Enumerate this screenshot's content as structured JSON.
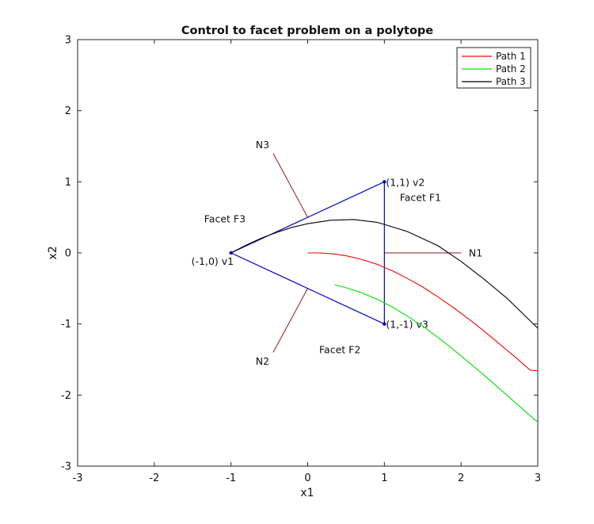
{
  "chart_data": {
    "type": "line",
    "title": "Control to facet problem on a polytope",
    "xlabel": "x1",
    "ylabel": "x2",
    "xlim": [
      -3,
      3
    ],
    "ylim": [
      -3,
      3
    ],
    "xticks": [
      -3,
      -2,
      -1,
      0,
      1,
      2,
      3
    ],
    "yticks": [
      -3,
      -2,
      -1,
      0,
      1,
      2,
      3
    ],
    "grid": false,
    "legend_position": "top-right",
    "series": [
      {
        "name": "Path 1",
        "color": "#ff0000",
        "x": [
          0,
          0.15,
          0.3,
          0.5,
          0.7,
          0.9,
          1.1,
          1.3,
          1.5,
          1.7,
          1.9,
          2.1,
          2.3,
          2.5,
          2.7,
          2.9,
          3.0
        ],
        "y": [
          0,
          0,
          -0.01,
          -0.04,
          -0.09,
          -0.16,
          -0.25,
          -0.36,
          -0.48,
          -0.62,
          -0.77,
          -0.93,
          -1.1,
          -1.28,
          -1.46,
          -1.65,
          -1.66
        ]
      },
      {
        "name": "Path 2",
        "color": "#00e000",
        "x": [
          0.35,
          0.5,
          0.7,
          0.9,
          1.1,
          1.3,
          1.5,
          1.7,
          1.9,
          2.1,
          2.3,
          2.5,
          2.7,
          2.9,
          3.0
        ],
        "y": [
          -0.45,
          -0.49,
          -0.56,
          -0.65,
          -0.76,
          -0.89,
          -1.03,
          -1.19,
          -1.36,
          -1.54,
          -1.72,
          -1.91,
          -2.1,
          -2.29,
          -2.38
        ]
      },
      {
        "name": "Path 3",
        "color": "#000000",
        "x": [
          -1,
          -0.8,
          -0.6,
          -0.4,
          -0.2,
          0,
          0.3,
          0.6,
          0.9,
          1.0,
          1.3,
          1.7,
          2.0,
          2.3,
          2.6,
          3.0
        ],
        "y": [
          0,
          0.11,
          0.21,
          0.29,
          0.36,
          0.41,
          0.46,
          0.47,
          0.43,
          0.4,
          0.3,
          0.1,
          -0.12,
          -0.37,
          -0.64,
          -1.06
        ]
      }
    ],
    "polytope": {
      "color": "#0000cc",
      "vertices": [
        {
          "x": -1,
          "y": 0,
          "label": "(-1,0) v1"
        },
        {
          "x": 1,
          "y": 1,
          "label": "(1,1) v2"
        },
        {
          "x": 1,
          "y": -1,
          "label": "(1,-1) v3"
        }
      ]
    },
    "normals": {
      "color": "#8b1a1a",
      "items": [
        {
          "label": "N1",
          "x0": 1,
          "y0": 0,
          "x1": 2,
          "y1": 0,
          "label_x": 2.1,
          "label_y": 0
        },
        {
          "label": "N2",
          "x0": 0,
          "y0": -0.5,
          "x1": -0.45,
          "y1": -1.4,
          "label_x": -0.5,
          "label_y": -1.52
        },
        {
          "label": "N3",
          "x0": 0,
          "y0": 0.5,
          "x1": -0.45,
          "y1": 1.4,
          "label_x": -0.5,
          "label_y": 1.52
        }
      ]
    },
    "annotations": [
      {
        "text": "Facet F1",
        "x": 1.2,
        "y": 0.78
      },
      {
        "text": "Facet F2",
        "x": 0.15,
        "y": -1.36
      },
      {
        "text": "Facet F3",
        "x": -1.35,
        "y": 0.48
      }
    ]
  }
}
